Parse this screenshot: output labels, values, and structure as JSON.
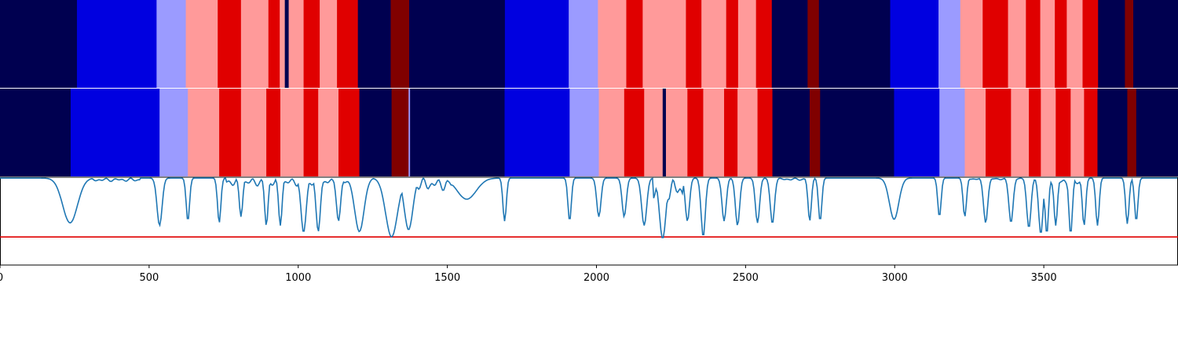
{
  "colors": {
    "state_0": "#000050",
    "state_1": "#0000e0",
    "state_2": "#9b9bff",
    "state_3": "#ff9a9a",
    "state_4": "#e00000",
    "state_5": "#800000",
    "line": "#1f77b4",
    "threshold": "#e00000"
  },
  "chart_data": [
    {
      "type": "heatmap",
      "name": "",
      "x_range": [
        0,
        3950
      ],
      "states": [
        "state_0",
        "state_1",
        "state_2",
        "state_3",
        "state_4",
        "state_5"
      ],
      "segments": [
        {
          "x0": 0,
          "x1": 258,
          "state": 0
        },
        {
          "x0": 258,
          "x1": 525,
          "state": 1
        },
        {
          "x0": 525,
          "x1": 623,
          "state": 2
        },
        {
          "x0": 623,
          "x1": 730,
          "state": 3
        },
        {
          "x0": 730,
          "x1": 808,
          "state": 4
        },
        {
          "x0": 808,
          "x1": 900,
          "state": 3
        },
        {
          "x0": 900,
          "x1": 938,
          "state": 4
        },
        {
          "x0": 938,
          "x1": 955,
          "state": 3
        },
        {
          "x0": 955,
          "x1": 968,
          "state": 0
        },
        {
          "x0": 968,
          "x1": 1018,
          "state": 3
        },
        {
          "x0": 1018,
          "x1": 1072,
          "state": 4
        },
        {
          "x0": 1072,
          "x1": 1130,
          "state": 3
        },
        {
          "x0": 1130,
          "x1": 1200,
          "state": 4
        },
        {
          "x0": 1200,
          "x1": 1310,
          "state": 0
        },
        {
          "x0": 1310,
          "x1": 1372,
          "state": 5
        },
        {
          "x0": 1372,
          "x1": 1693,
          "state": 0
        },
        {
          "x0": 1693,
          "x1": 1907,
          "state": 1
        },
        {
          "x0": 1907,
          "x1": 2005,
          "state": 2
        },
        {
          "x0": 2005,
          "x1": 2100,
          "state": 3
        },
        {
          "x0": 2100,
          "x1": 2155,
          "state": 4
        },
        {
          "x0": 2155,
          "x1": 2300,
          "state": 3
        },
        {
          "x0": 2300,
          "x1": 2352,
          "state": 4
        },
        {
          "x0": 2352,
          "x1": 2435,
          "state": 3
        },
        {
          "x0": 2435,
          "x1": 2475,
          "state": 4
        },
        {
          "x0": 2475,
          "x1": 2535,
          "state": 3
        },
        {
          "x0": 2535,
          "x1": 2588,
          "state": 4
        },
        {
          "x0": 2588,
          "x1": 2708,
          "state": 0
        },
        {
          "x0": 2708,
          "x1": 2746,
          "state": 5
        },
        {
          "x0": 2746,
          "x1": 2985,
          "state": 0
        },
        {
          "x0": 2985,
          "x1": 3147,
          "state": 1
        },
        {
          "x0": 3147,
          "x1": 3220,
          "state": 2
        },
        {
          "x0": 3220,
          "x1": 3295,
          "state": 3
        },
        {
          "x0": 3295,
          "x1": 3380,
          "state": 4
        },
        {
          "x0": 3380,
          "x1": 3440,
          "state": 3
        },
        {
          "x0": 3440,
          "x1": 3488,
          "state": 4
        },
        {
          "x0": 3488,
          "x1": 3537,
          "state": 3
        },
        {
          "x0": 3537,
          "x1": 3577,
          "state": 4
        },
        {
          "x0": 3577,
          "x1": 3630,
          "state": 3
        },
        {
          "x0": 3630,
          "x1": 3682,
          "state": 4
        },
        {
          "x0": 3682,
          "x1": 3772,
          "state": 0
        },
        {
          "x0": 3772,
          "x1": 3800,
          "state": 5
        },
        {
          "x0": 3800,
          "x1": 3950,
          "state": 0
        }
      ]
    },
    {
      "type": "heatmap",
      "name": "",
      "x_range": [
        0,
        3950
      ],
      "states": [
        "state_0",
        "state_1",
        "state_2",
        "state_3",
        "state_4",
        "state_5"
      ],
      "segments": [
        {
          "x0": 0,
          "x1": 237,
          "state": 0
        },
        {
          "x0": 237,
          "x1": 535,
          "state": 1
        },
        {
          "x0": 535,
          "x1": 630,
          "state": 2
        },
        {
          "x0": 630,
          "x1": 735,
          "state": 3
        },
        {
          "x0": 735,
          "x1": 808,
          "state": 4
        },
        {
          "x0": 808,
          "x1": 893,
          "state": 3
        },
        {
          "x0": 893,
          "x1": 940,
          "state": 4
        },
        {
          "x0": 940,
          "x1": 1018,
          "state": 3
        },
        {
          "x0": 1018,
          "x1": 1067,
          "state": 4
        },
        {
          "x0": 1067,
          "x1": 1135,
          "state": 3
        },
        {
          "x0": 1135,
          "x1": 1205,
          "state": 4
        },
        {
          "x0": 1205,
          "x1": 1313,
          "state": 0
        },
        {
          "x0": 1313,
          "x1": 1370,
          "state": 5
        },
        {
          "x0": 1370,
          "x1": 1375,
          "state": 2
        },
        {
          "x0": 1375,
          "x1": 1692,
          "state": 0
        },
        {
          "x0": 1692,
          "x1": 1910,
          "state": 1
        },
        {
          "x0": 1910,
          "x1": 2008,
          "state": 2
        },
        {
          "x0": 2008,
          "x1": 2093,
          "state": 3
        },
        {
          "x0": 2093,
          "x1": 2160,
          "state": 4
        },
        {
          "x0": 2160,
          "x1": 2222,
          "state": 3
        },
        {
          "x0": 2222,
          "x1": 2233,
          "state": 0
        },
        {
          "x0": 2233,
          "x1": 2305,
          "state": 3
        },
        {
          "x0": 2305,
          "x1": 2358,
          "state": 4
        },
        {
          "x0": 2358,
          "x1": 2428,
          "state": 3
        },
        {
          "x0": 2428,
          "x1": 2473,
          "state": 4
        },
        {
          "x0": 2473,
          "x1": 2540,
          "state": 3
        },
        {
          "x0": 2540,
          "x1": 2590,
          "state": 4
        },
        {
          "x0": 2590,
          "x1": 2715,
          "state": 0
        },
        {
          "x0": 2715,
          "x1": 2750,
          "state": 5
        },
        {
          "x0": 2750,
          "x1": 2998,
          "state": 0
        },
        {
          "x0": 2998,
          "x1": 3150,
          "state": 1
        },
        {
          "x0": 3150,
          "x1": 3235,
          "state": 2
        },
        {
          "x0": 3235,
          "x1": 3305,
          "state": 3
        },
        {
          "x0": 3305,
          "x1": 3390,
          "state": 4
        },
        {
          "x0": 3390,
          "x1": 3450,
          "state": 3
        },
        {
          "x0": 3450,
          "x1": 3490,
          "state": 4
        },
        {
          "x0": 3490,
          "x1": 3540,
          "state": 3
        },
        {
          "x0": 3540,
          "x1": 3590,
          "state": 4
        },
        {
          "x0": 3590,
          "x1": 3635,
          "state": 3
        },
        {
          "x0": 3635,
          "x1": 3680,
          "state": 4
        },
        {
          "x0": 3680,
          "x1": 3780,
          "state": 0
        },
        {
          "x0": 3780,
          "x1": 3810,
          "state": 5
        },
        {
          "x0": 3810,
          "x1": 3950,
          "state": 0
        }
      ]
    },
    {
      "type": "line",
      "x_range": [
        0,
        3950
      ],
      "ylim": [
        0,
        1
      ],
      "threshold": 0.32,
      "xticks": [
        0,
        500,
        1000,
        1500,
        2000,
        2500,
        3000,
        3500
      ],
      "baseline": 0.99,
      "noise": [
        {
          "x0": 300,
          "x1": 470,
          "level": 0.93
        },
        {
          "x0": 760,
          "x1": 1200,
          "level": 0.85
        },
        {
          "x0": 1400,
          "x1": 1600,
          "level": 0.77
        },
        {
          "x0": 2190,
          "x1": 2290,
          "level": 0.6
        },
        {
          "x0": 2600,
          "x1": 2700,
          "level": 0.95
        },
        {
          "x0": 3250,
          "x1": 3450,
          "level": 0.96
        },
        {
          "x0": 3500,
          "x1": 3650,
          "level": 0.85
        }
      ],
      "dips": [
        {
          "x": 235,
          "y": 0.48,
          "w": 35
        },
        {
          "x": 535,
          "y": 0.45,
          "w": 12
        },
        {
          "x": 630,
          "y": 0.5,
          "w": 8
        },
        {
          "x": 735,
          "y": 0.48,
          "w": 8
        },
        {
          "x": 808,
          "y": 0.55,
          "w": 8
        },
        {
          "x": 893,
          "y": 0.45,
          "w": 8
        },
        {
          "x": 940,
          "y": 0.45,
          "w": 8
        },
        {
          "x": 1018,
          "y": 0.37,
          "w": 12
        },
        {
          "x": 1067,
          "y": 0.38,
          "w": 10
        },
        {
          "x": 1135,
          "y": 0.5,
          "w": 10
        },
        {
          "x": 1205,
          "y": 0.38,
          "w": 22
        },
        {
          "x": 1313,
          "y": 0.32,
          "w": 28
        },
        {
          "x": 1370,
          "y": 0.4,
          "w": 20
        },
        {
          "x": 1565,
          "y": 0.75,
          "w": 45
        },
        {
          "x": 1692,
          "y": 0.5,
          "w": 8
        },
        {
          "x": 1910,
          "y": 0.5,
          "w": 8
        },
        {
          "x": 2008,
          "y": 0.55,
          "w": 10
        },
        {
          "x": 2093,
          "y": 0.55,
          "w": 10
        },
        {
          "x": 2160,
          "y": 0.45,
          "w": 12
        },
        {
          "x": 2222,
          "y": 0.3,
          "w": 15
        },
        {
          "x": 2305,
          "y": 0.5,
          "w": 10
        },
        {
          "x": 2358,
          "y": 0.32,
          "w": 10
        },
        {
          "x": 2428,
          "y": 0.5,
          "w": 10
        },
        {
          "x": 2473,
          "y": 0.45,
          "w": 10
        },
        {
          "x": 2540,
          "y": 0.48,
          "w": 10
        },
        {
          "x": 2590,
          "y": 0.47,
          "w": 10
        },
        {
          "x": 2715,
          "y": 0.5,
          "w": 8
        },
        {
          "x": 2750,
          "y": 0.5,
          "w": 8
        },
        {
          "x": 2998,
          "y": 0.52,
          "w": 22
        },
        {
          "x": 3150,
          "y": 0.55,
          "w": 8
        },
        {
          "x": 3235,
          "y": 0.55,
          "w": 8
        },
        {
          "x": 3305,
          "y": 0.48,
          "w": 10
        },
        {
          "x": 3390,
          "y": 0.48,
          "w": 10
        },
        {
          "x": 3450,
          "y": 0.42,
          "w": 10
        },
        {
          "x": 3490,
          "y": 0.35,
          "w": 10
        },
        {
          "x": 3510,
          "y": 0.35,
          "w": 8
        },
        {
          "x": 3540,
          "y": 0.45,
          "w": 8
        },
        {
          "x": 3590,
          "y": 0.35,
          "w": 8
        },
        {
          "x": 3635,
          "y": 0.45,
          "w": 8
        },
        {
          "x": 3680,
          "y": 0.45,
          "w": 8
        },
        {
          "x": 3780,
          "y": 0.47,
          "w": 8
        },
        {
          "x": 3810,
          "y": 0.5,
          "w": 8
        }
      ]
    }
  ]
}
